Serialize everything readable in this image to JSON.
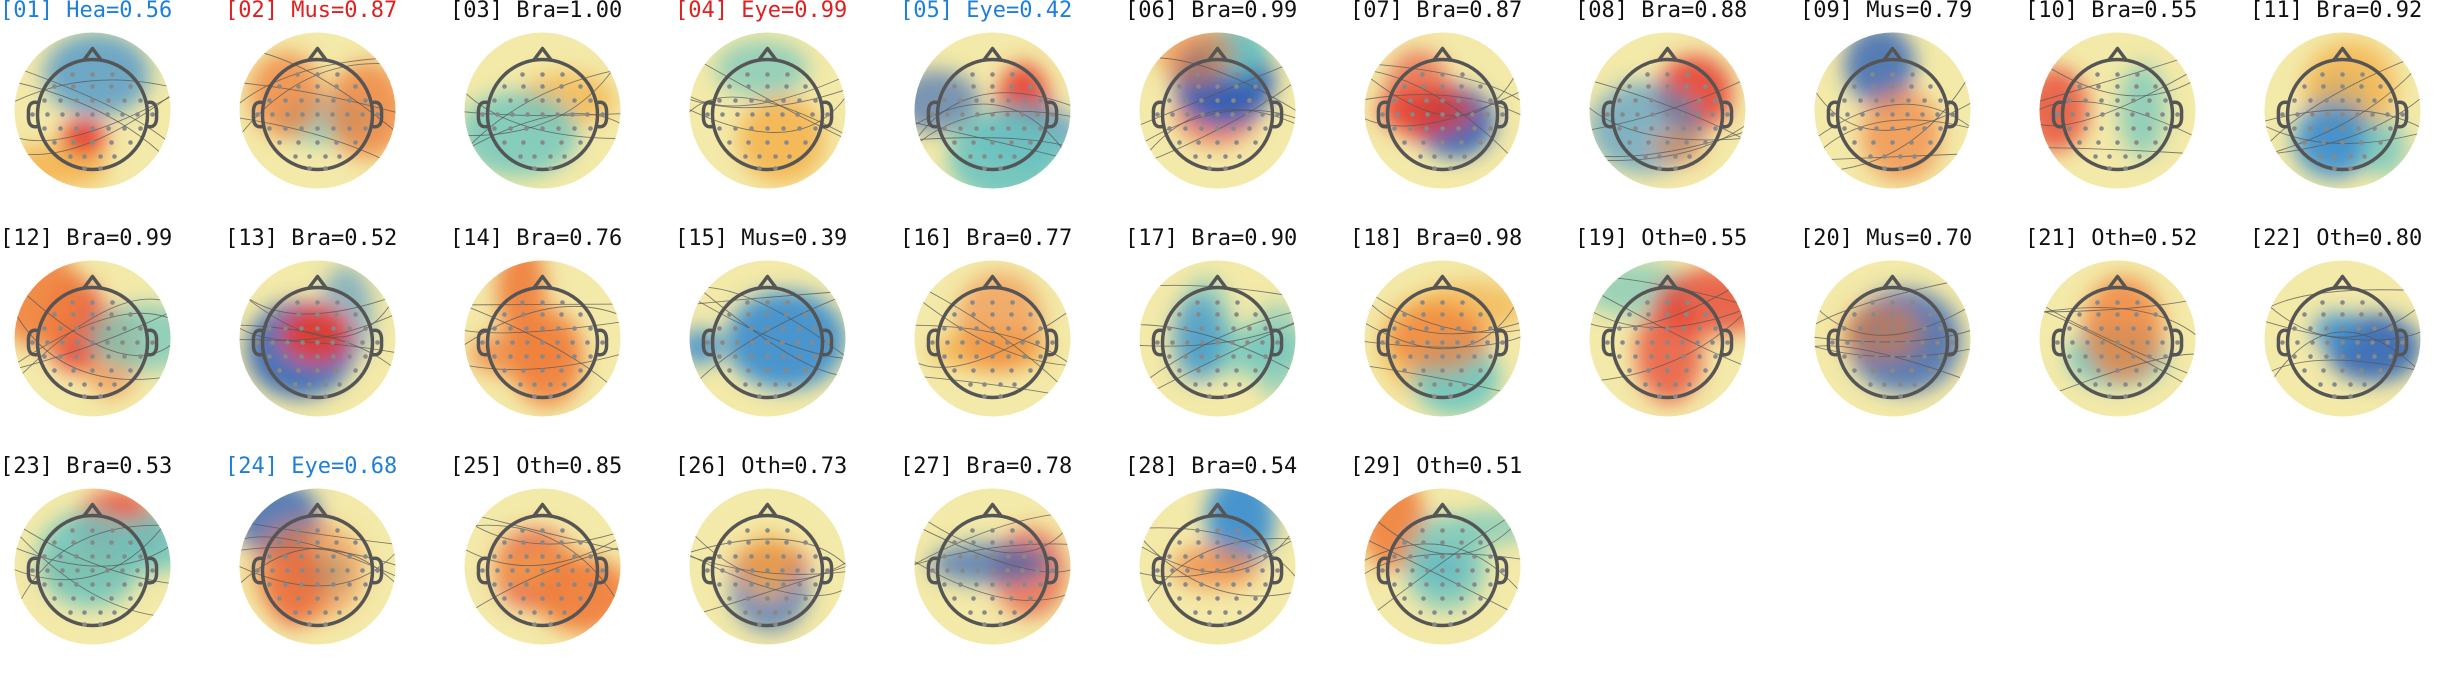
{
  "label_colors": {
    "Hea": "#1e7fd8",
    "Mus": "#e02020",
    "Bra": "#111111",
    "Eye_red": "#e02020",
    "Eye_blue": "#1e7fd8",
    "Oth": "#111111"
  },
  "components": [
    {
      "label": "[01] Hea=0.56",
      "color": "#1e7fd8"
    },
    {
      "label": "[02] Mus=0.87",
      "color": "#e02020"
    },
    {
      "label": "[03] Bra=1.00",
      "color": "#111111"
    },
    {
      "label": "[04] Eye=0.99",
      "color": "#e02020"
    },
    {
      "label": "[05] Eye=0.42",
      "color": "#1e7fd8"
    },
    {
      "label": "[06] Bra=0.99",
      "color": "#111111"
    },
    {
      "label": "[07] Bra=0.87",
      "color": "#111111"
    },
    {
      "label": "[08] Bra=0.88",
      "color": "#111111"
    },
    {
      "label": "[09] Mus=0.79",
      "color": "#111111"
    },
    {
      "label": "[10] Bra=0.55",
      "color": "#111111"
    },
    {
      "label": "[11] Bra=0.92",
      "color": "#111111"
    },
    {
      "label": "[12] Bra=0.99",
      "color": "#111111"
    },
    {
      "label": "[13] Bra=0.52",
      "color": "#111111"
    },
    {
      "label": "[14] Bra=0.76",
      "color": "#111111"
    },
    {
      "label": "[15] Mus=0.39",
      "color": "#111111"
    },
    {
      "label": "[16] Bra=0.77",
      "color": "#111111"
    },
    {
      "label": "[17] Bra=0.90",
      "color": "#111111"
    },
    {
      "label": "[18] Bra=0.98",
      "color": "#111111"
    },
    {
      "label": "[19] Oth=0.55",
      "color": "#111111"
    },
    {
      "label": "[20] Mus=0.70",
      "color": "#111111"
    },
    {
      "label": "[21] Oth=0.52",
      "color": "#111111"
    },
    {
      "label": "[22] Oth=0.80",
      "color": "#111111"
    },
    {
      "label": "[23] Bra=0.53",
      "color": "#111111"
    },
    {
      "label": "[24] Eye=0.68",
      "color": "#1e7fd8"
    },
    {
      "label": "[25] Oth=0.85",
      "color": "#111111"
    },
    {
      "label": "[26] Oth=0.73",
      "color": "#111111"
    },
    {
      "label": "[27] Bra=0.78",
      "color": "#111111"
    },
    {
      "label": "[28] Bra=0.54",
      "color": "#111111"
    },
    {
      "label": "[29] Oth=0.51",
      "color": "#111111"
    }
  ]
}
